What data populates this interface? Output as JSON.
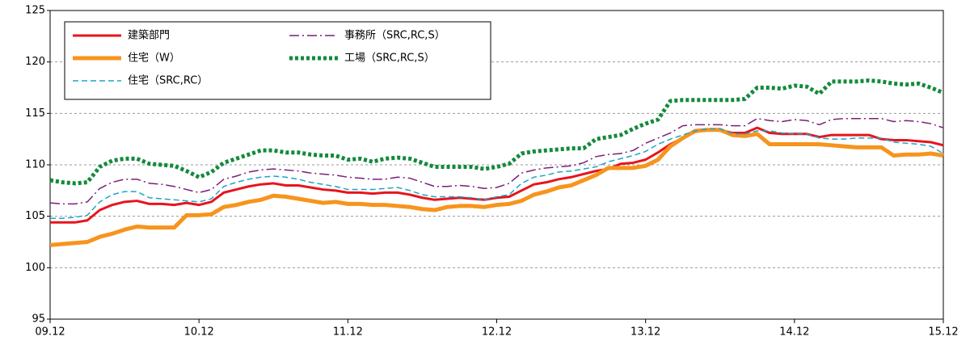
{
  "chart_data": {
    "type": "line",
    "categories": [
      "09.12",
      null,
      null,
      null,
      null,
      null,
      null,
      null,
      null,
      null,
      null,
      null,
      "10.12",
      null,
      null,
      null,
      null,
      null,
      null,
      null,
      null,
      null,
      null,
      null,
      "11.12",
      null,
      null,
      null,
      null,
      null,
      null,
      null,
      null,
      null,
      null,
      null,
      "12.12",
      null,
      null,
      null,
      null,
      null,
      null,
      null,
      null,
      null,
      null,
      null,
      "13.12",
      null,
      null,
      null,
      null,
      null,
      null,
      null,
      null,
      null,
      null,
      null,
      "14.12",
      null,
      null,
      null,
      null,
      null,
      null,
      null,
      null,
      null,
      null,
      null,
      "15.12"
    ],
    "ylim": [
      95,
      125
    ],
    "yticks": [
      95,
      100,
      105,
      110,
      115,
      120,
      125
    ],
    "grid": true,
    "legend": "upper left",
    "series": [
      {
        "name": "建築部門",
        "color": "#e8141c",
        "values": [
          104.4,
          104.4,
          104.4,
          104.6,
          105.6,
          106.1,
          106.4,
          106.5,
          106.2,
          106.2,
          106.1,
          106.3,
          106.1,
          106.4,
          107.3,
          107.6,
          107.9,
          108.1,
          108.2,
          108.0,
          108.0,
          107.8,
          107.6,
          107.5,
          107.3,
          107.3,
          107.2,
          107.3,
          107.3,
          107.1,
          106.8,
          106.6,
          106.7,
          106.8,
          106.7,
          106.6,
          106.8,
          106.9,
          107.5,
          108.1,
          108.3,
          108.6,
          108.8,
          109.1,
          109.4,
          109.6,
          110.1,
          110.2,
          110.5,
          111.2,
          112.0,
          112.6,
          113.2,
          113.4,
          113.4,
          113.1,
          113.1,
          113.6,
          113.1,
          113.0,
          113.0,
          113.0,
          112.7,
          112.9,
          112.9,
          112.9,
          112.9,
          112.5,
          112.4,
          112.4,
          112.3,
          112.2,
          111.9
        ]
      },
      {
        "name": "住宅（W）",
        "color": "#f7941d",
        "values": [
          102.2,
          102.3,
          102.4,
          102.5,
          103.0,
          103.3,
          103.7,
          104.0,
          103.9,
          103.9,
          103.9,
          105.1,
          105.1,
          105.2,
          105.9,
          106.1,
          106.4,
          106.6,
          107.0,
          106.9,
          106.7,
          106.5,
          106.3,
          106.4,
          106.2,
          106.2,
          106.1,
          106.1,
          106.0,
          105.9,
          105.7,
          105.6,
          105.9,
          106.0,
          106.0,
          105.9,
          106.1,
          106.2,
          106.5,
          107.1,
          107.4,
          107.8,
          108.0,
          108.5,
          109.0,
          109.7,
          109.7,
          109.7,
          109.9,
          110.5,
          111.8,
          112.6,
          113.3,
          113.4,
          113.4,
          112.9,
          112.8,
          113.0,
          112.0,
          112.0,
          112.0,
          112.0,
          112.0,
          111.9,
          111.8,
          111.7,
          111.7,
          111.7,
          110.9,
          111.0,
          111.0,
          111.1,
          110.9
        ]
      },
      {
        "name": "住宅（SRC,RC）",
        "color": "#1ea5c8",
        "values": [
          104.8,
          104.8,
          104.9,
          105.1,
          106.4,
          107.1,
          107.4,
          107.4,
          106.8,
          106.7,
          106.6,
          106.5,
          106.4,
          106.7,
          107.9,
          108.3,
          108.6,
          108.8,
          108.9,
          108.8,
          108.6,
          108.3,
          108.1,
          107.9,
          107.6,
          107.6,
          107.6,
          107.7,
          107.8,
          107.5,
          107.1,
          106.9,
          106.9,
          106.9,
          106.8,
          106.6,
          106.9,
          107.1,
          108.2,
          108.8,
          109.0,
          109.3,
          109.4,
          109.6,
          109.8,
          110.3,
          110.6,
          110.9,
          111.3,
          112.0,
          112.5,
          112.9,
          113.3,
          113.5,
          113.5,
          113.0,
          113.0,
          113.3,
          113.3,
          113.1,
          113.0,
          113.0,
          112.6,
          112.5,
          112.5,
          112.6,
          112.6,
          112.6,
          112.2,
          112.1,
          112.0,
          111.8,
          111.1
        ]
      },
      {
        "name": "事務所（SRC,RC,S）",
        "color": "#7a1f7a",
        "values": [
          106.3,
          106.2,
          106.2,
          106.4,
          107.7,
          108.3,
          108.6,
          108.6,
          108.2,
          108.1,
          107.9,
          107.6,
          107.3,
          107.6,
          108.6,
          108.9,
          109.3,
          109.5,
          109.6,
          109.5,
          109.4,
          109.2,
          109.1,
          109.0,
          108.8,
          108.7,
          108.6,
          108.6,
          108.8,
          108.7,
          108.3,
          107.9,
          107.9,
          108.0,
          107.9,
          107.7,
          107.8,
          108.2,
          109.2,
          109.5,
          109.7,
          109.8,
          109.9,
          110.2,
          110.8,
          111.0,
          111.1,
          111.4,
          112.1,
          112.6,
          113.1,
          113.8,
          113.9,
          113.9,
          113.9,
          113.8,
          113.8,
          114.5,
          114.3,
          114.2,
          114.4,
          114.3,
          113.9,
          114.4,
          114.5,
          114.5,
          114.5,
          114.5,
          114.2,
          114.3,
          114.2,
          114.0,
          113.6
        ]
      },
      {
        "name": "工場（SRC,RC,S）",
        "color": "#138a3c",
        "values": [
          108.5,
          108.3,
          108.2,
          108.3,
          109.8,
          110.4,
          110.6,
          110.6,
          110.1,
          110.0,
          109.9,
          109.4,
          108.8,
          109.3,
          110.2,
          110.6,
          111.0,
          111.4,
          111.4,
          111.2,
          111.2,
          111.0,
          110.9,
          110.9,
          110.5,
          110.6,
          110.3,
          110.6,
          110.7,
          110.6,
          110.2,
          109.8,
          109.8,
          109.8,
          109.8,
          109.6,
          109.8,
          110.1,
          111.1,
          111.3,
          111.4,
          111.5,
          111.6,
          111.6,
          112.5,
          112.7,
          112.9,
          113.5,
          114.0,
          114.4,
          116.2,
          116.3,
          116.3,
          116.3,
          116.3,
          116.3,
          116.4,
          117.5,
          117.5,
          117.4,
          117.7,
          117.6,
          116.9,
          118.1,
          118.1,
          118.1,
          118.2,
          118.1,
          117.9,
          117.8,
          117.9,
          117.5,
          117.0
        ]
      }
    ]
  }
}
